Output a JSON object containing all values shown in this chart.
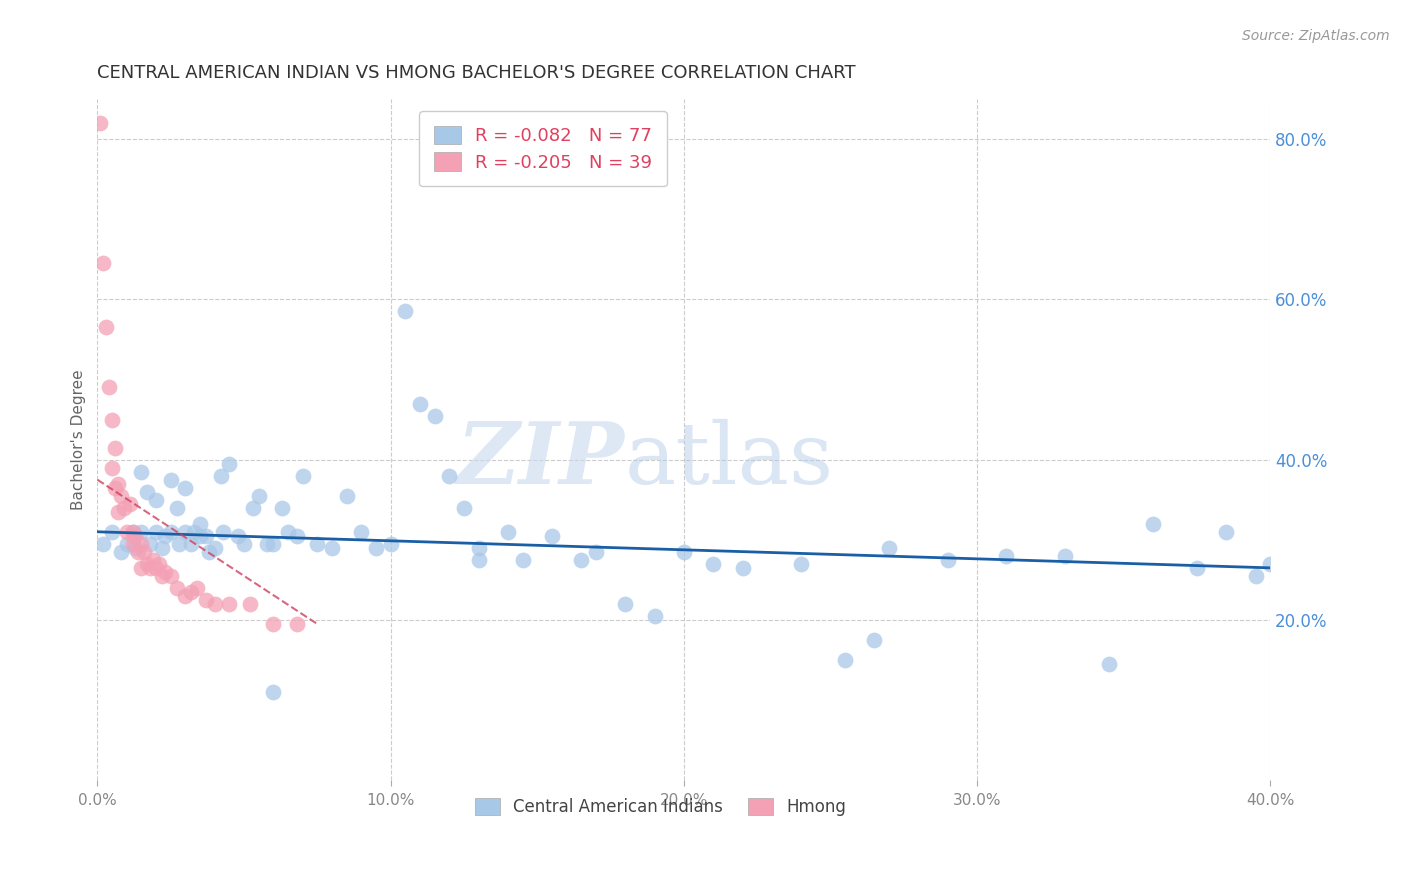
{
  "title": "CENTRAL AMERICAN INDIAN VS HMONG BACHELOR'S DEGREE CORRELATION CHART",
  "source": "Source: ZipAtlas.com",
  "ylabel": "Bachelor's Degree",
  "xlim": [
    0.0,
    0.4
  ],
  "ylim": [
    0.0,
    0.85
  ],
  "xticks": [
    0.0,
    0.1,
    0.2,
    0.3,
    0.4
  ],
  "yticks_right": [
    0.2,
    0.4,
    0.6,
    0.8
  ],
  "blue_R": -0.082,
  "blue_N": 77,
  "pink_R": -0.205,
  "pink_N": 39,
  "blue_color": "#a8c8e8",
  "pink_color": "#f4a0b5",
  "trendline_blue_color": "#1a5fa6",
  "trendline_pink_color": "#d04060",
  "watermark_zip": "ZIP",
  "watermark_atlas": "atlas",
  "blue_x": [
    0.002,
    0.005,
    0.008,
    0.01,
    0.012,
    0.013,
    0.015,
    0.015,
    0.017,
    0.018,
    0.02,
    0.02,
    0.022,
    0.023,
    0.025,
    0.025,
    0.027,
    0.028,
    0.03,
    0.03,
    0.032,
    0.033,
    0.035,
    0.035,
    0.037,
    0.038,
    0.04,
    0.042,
    0.043,
    0.045,
    0.048,
    0.05,
    0.053,
    0.055,
    0.058,
    0.06,
    0.063,
    0.065,
    0.068,
    0.07,
    0.075,
    0.08,
    0.085,
    0.09,
    0.095,
    0.1,
    0.105,
    0.11,
    0.115,
    0.12,
    0.125,
    0.13,
    0.14,
    0.145,
    0.155,
    0.165,
    0.17,
    0.18,
    0.19,
    0.2,
    0.21,
    0.22,
    0.24,
    0.255,
    0.265,
    0.27,
    0.29,
    0.31,
    0.33,
    0.345,
    0.36,
    0.375,
    0.385,
    0.395,
    0.4,
    0.13,
    0.06
  ],
  "blue_y": [
    0.295,
    0.31,
    0.285,
    0.295,
    0.31,
    0.29,
    0.385,
    0.31,
    0.36,
    0.295,
    0.35,
    0.31,
    0.29,
    0.305,
    0.375,
    0.31,
    0.34,
    0.295,
    0.365,
    0.31,
    0.295,
    0.31,
    0.32,
    0.305,
    0.305,
    0.285,
    0.29,
    0.38,
    0.31,
    0.395,
    0.305,
    0.295,
    0.34,
    0.355,
    0.295,
    0.295,
    0.34,
    0.31,
    0.305,
    0.38,
    0.295,
    0.29,
    0.355,
    0.31,
    0.29,
    0.295,
    0.585,
    0.47,
    0.455,
    0.38,
    0.34,
    0.29,
    0.31,
    0.275,
    0.305,
    0.275,
    0.285,
    0.22,
    0.205,
    0.285,
    0.27,
    0.265,
    0.27,
    0.15,
    0.175,
    0.29,
    0.275,
    0.28,
    0.28,
    0.145,
    0.32,
    0.265,
    0.31,
    0.255,
    0.27,
    0.275,
    0.11
  ],
  "pink_x": [
    0.001,
    0.002,
    0.003,
    0.004,
    0.005,
    0.005,
    0.006,
    0.006,
    0.007,
    0.007,
    0.008,
    0.009,
    0.01,
    0.011,
    0.012,
    0.012,
    0.013,
    0.014,
    0.015,
    0.015,
    0.016,
    0.017,
    0.018,
    0.019,
    0.02,
    0.021,
    0.022,
    0.023,
    0.025,
    0.027,
    0.03,
    0.032,
    0.034,
    0.037,
    0.04,
    0.045,
    0.052,
    0.06,
    0.068
  ],
  "pink_y": [
    0.82,
    0.645,
    0.565,
    0.49,
    0.45,
    0.39,
    0.415,
    0.365,
    0.37,
    0.335,
    0.355,
    0.34,
    0.31,
    0.345,
    0.31,
    0.295,
    0.305,
    0.285,
    0.295,
    0.265,
    0.285,
    0.27,
    0.265,
    0.275,
    0.265,
    0.27,
    0.255,
    0.26,
    0.255,
    0.24,
    0.23,
    0.235,
    0.24,
    0.225,
    0.22,
    0.22,
    0.22,
    0.195,
    0.195
  ],
  "blue_trendline_x": [
    0.0,
    0.4
  ],
  "blue_trendline_y": [
    0.31,
    0.265
  ],
  "pink_trendline_x": [
    0.0,
    0.075
  ],
  "pink_trendline_y": [
    0.375,
    0.195
  ]
}
